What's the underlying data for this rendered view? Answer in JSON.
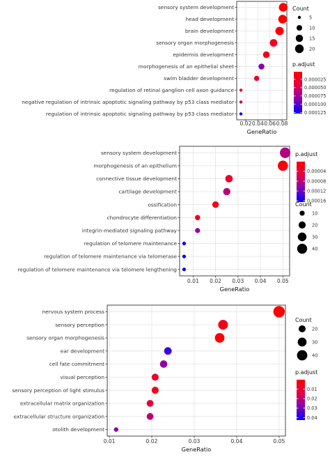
{
  "chart_data": [
    {
      "type": "scatter",
      "categories": [
        "sensory system development",
        "head development",
        "brain development",
        "sensory organ morphogenesis",
        "epidermis development",
        "morphogenesis of an epithelial sheet",
        "swim bladder development",
        "regulation of retinal ganglion cell axon guidance",
        "negative regulation of intrinsic apoptotic signaling pathway by p53 class mediator",
        "regulation of intrinsic apoptotic signaling pathway by p53 class mediator"
      ],
      "x": [
        0.082,
        0.081,
        0.076,
        0.066,
        0.054,
        0.046,
        0.038,
        0.012,
        0.012,
        0.012
      ],
      "count": [
        21,
        21,
        19,
        16,
        13,
        11,
        9,
        3,
        3,
        3
      ],
      "p_adjust": [
        3e-06,
        2e-06,
        8e-06,
        2e-05,
        1e-05,
        8.5e-05,
        3e-05,
        2.5e-05,
        6e-05,
        0.000125
      ],
      "xlabel": "GeneRatio",
      "xticks": [
        0.02,
        0.04,
        0.06,
        0.08
      ],
      "xtick_labels": [
        "0.02",
        "0.04",
        "0.06",
        "0.08"
      ],
      "xlim": [
        0.005,
        0.088
      ],
      "count_legend": {
        "title": "Count",
        "values": [
          5,
          10,
          15,
          20
        ],
        "labels": [
          "5",
          "10",
          "15",
          "20"
        ]
      },
      "color_legend": {
        "title": "p.adjust",
        "min": 2e-06,
        "max": 0.000128,
        "ticks": [
          2.5e-05,
          5e-05,
          7.5e-05,
          0.0001,
          0.000125
        ],
        "labels": [
          "0.000025",
          "0.000050",
          "0.000075",
          "0.000100",
          "0.000125"
        ]
      },
      "legend_order": "count-first",
      "grid": true
    },
    {
      "type": "scatter",
      "categories": [
        "sensory system development",
        "morphogenesis of an epithelium",
        "connective tissue development",
        "cartilage development",
        "ossification",
        "chondrocyte differentiation",
        "integrin-mediated signaling pathway",
        "regulation of telomere maintenance",
        "regulation of telomere maintenance via telomerase",
        "regulation of telomere maintenance via telomere lengthening"
      ],
      "x": [
        0.051,
        0.05,
        0.026,
        0.025,
        0.02,
        0.012,
        0.012,
        0.006,
        0.006,
        0.006
      ],
      "count": [
        44,
        42,
        22,
        21,
        17,
        11,
        10,
        5,
        5,
        5
      ],
      "p_adjust": [
        8.5e-05,
        1e-05,
        3.5e-05,
        8e-05,
        1.5e-05,
        2e-05,
        0.0001,
        0.00016,
        0.00016,
        0.00016
      ],
      "xlabel": "GeneRatio",
      "xticks": [
        0.01,
        0.02,
        0.03,
        0.04,
        0.05
      ],
      "xtick_labels": [
        "0.01",
        "0.02",
        "0.03",
        "0.04",
        "0.05"
      ],
      "xlim": [
        0.004,
        0.053
      ],
      "count_legend": {
        "title": "Count",
        "values": [
          10,
          20,
          30,
          40
        ],
        "labels": [
          "10",
          "20",
          "30",
          "40"
        ]
      },
      "color_legend": {
        "title": "p.adjust",
        "min": 5e-07,
        "max": 0.000165,
        "ticks": [
          4e-05,
          8e-05,
          0.00012,
          0.00016
        ],
        "labels": [
          "0.00004",
          "0.00008",
          "0.00012",
          "0.00016"
        ]
      },
      "legend_order": "color-first",
      "grid": true
    },
    {
      "type": "scatter",
      "categories": [
        "nervous system process",
        "sensory perception",
        "sensory organ morphogenesis",
        "ear development",
        "cell fate commitment",
        "visual perception",
        "sensory perception of light stimulus",
        "extracellular matrix organization",
        "extracellular structure organization",
        "otolith development"
      ],
      "x": [
        0.05,
        0.0368,
        0.036,
        0.0238,
        0.0228,
        0.0208,
        0.0208,
        0.0196,
        0.0196,
        0.0116
      ],
      "count": [
        48,
        36,
        35,
        23,
        22,
        20,
        20,
        19,
        19,
        10
      ],
      "p_adjust": [
        0.0004,
        0.006,
        0.0008,
        0.036,
        0.026,
        0.008,
        0.006,
        0.012,
        0.02,
        0.028
      ],
      "xlabel": "GeneRatio",
      "xticks": [
        0.01,
        0.02,
        0.03,
        0.04,
        0.05
      ],
      "xtick_labels": [
        "0.01",
        "0.02",
        "0.03",
        "0.04",
        "0.05"
      ],
      "xlim": [
        0.0095,
        0.0515
      ],
      "count_legend": {
        "title": "Count",
        "values": [
          20,
          30,
          40
        ],
        "labels": [
          "20",
          "30",
          "40"
        ]
      },
      "color_legend": {
        "title": "p.adjust",
        "min": 0.0001,
        "max": 0.0425,
        "ticks": [
          0.01,
          0.02,
          0.03,
          0.04
        ],
        "labels": [
          "0.01",
          "0.02",
          "0.03",
          "0.04"
        ]
      },
      "legend_order": "count-first",
      "grid": true
    }
  ],
  "colors": {
    "low": "#ff0000",
    "high": "#0000ff",
    "panel_bg": "#ffffff",
    "grid": "#e6e6e6",
    "border": "#333333"
  }
}
